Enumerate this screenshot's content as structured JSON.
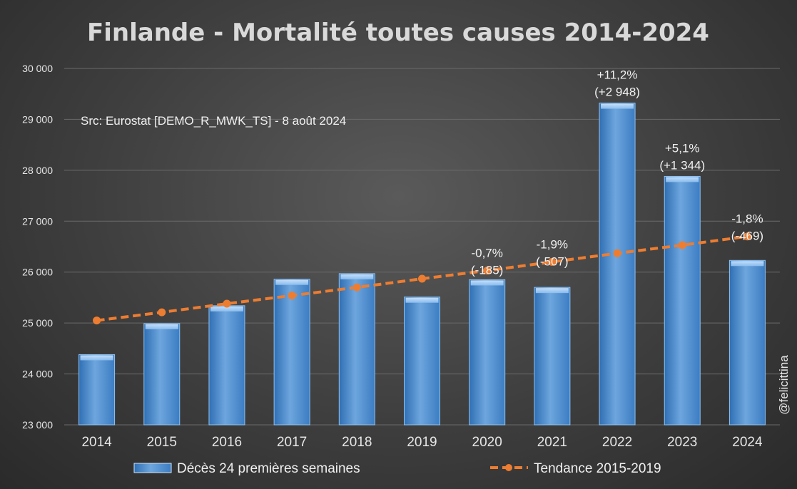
{
  "chart_data": {
    "type": "bar",
    "title": "Finlande - Mortalité toutes causes 2014-2024",
    "source_note": "Src: Eurostat [DEMO_R_MWK_TS] - 8 août 2024",
    "credit": "@felicittina",
    "xlabel": "",
    "ylabel": "",
    "ylim": [
      23000,
      30000
    ],
    "y_ticks": [
      23000,
      24000,
      25000,
      26000,
      27000,
      28000,
      29000,
      30000
    ],
    "y_tick_labels": [
      "23 000",
      "24 000",
      "25 000",
      "26 000",
      "27 000",
      "28 000",
      "29 000",
      "30 000"
    ],
    "categories": [
      "2014",
      "2015",
      "2016",
      "2017",
      "2018",
      "2019",
      "2020",
      "2021",
      "2022",
      "2023",
      "2024"
    ],
    "series": [
      {
        "name": "Décès 24 premières semaines",
        "type": "bar",
        "color": "#5b9bd5",
        "values": [
          24380,
          24990,
          25340,
          25860,
          25970,
          25510,
          25850,
          25700,
          29320,
          27880,
          26230
        ]
      },
      {
        "name": "Tendance 2015-2019",
        "type": "line",
        "color": "#ed7d31",
        "values": [
          25050,
          25210,
          25380,
          25540,
          25700,
          25870,
          26030,
          26200,
          26370,
          26530,
          26700
        ]
      }
    ],
    "annotations": [
      {
        "category": "2020",
        "lines": [
          "-0,7%",
          "(-185)"
        ],
        "anchor": "trend"
      },
      {
        "category": "2021",
        "lines": [
          "-1,9%",
          "(-507)"
        ],
        "anchor": "trend"
      },
      {
        "category": "2022",
        "lines": [
          "+11,2%",
          "(+2 948)"
        ],
        "anchor": "bar"
      },
      {
        "category": "2023",
        "lines": [
          "+5,1%",
          "(+1 344)"
        ],
        "anchor": "bar"
      },
      {
        "category": "2024",
        "lines": [
          "-1,8%",
          "(-469)"
        ],
        "anchor": "trend"
      }
    ],
    "legend": {
      "position": "bottom"
    },
    "grid": true
  }
}
